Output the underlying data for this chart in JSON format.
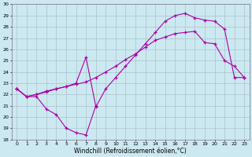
{
  "xlabel": "Windchill (Refroidissement éolien,°C)",
  "bg_color": "#cce8f0",
  "grid_color": "#aac4cc",
  "line_color": "#aa00aa",
  "ylim": [
    18,
    30
  ],
  "xlim": [
    -0.5,
    23.5
  ],
  "line1_x": [
    0,
    1,
    2,
    3,
    4,
    5,
    6,
    7,
    8
  ],
  "line1_y": [
    22.5,
    21.8,
    21.8,
    20.7,
    20.2,
    19.0,
    18.6,
    18.4,
    21.0
  ],
  "line2_x": [
    0,
    1,
    2,
    3,
    4,
    5,
    6,
    7,
    8,
    9,
    10,
    11,
    12,
    13,
    14,
    15,
    16,
    17,
    18,
    19,
    20,
    21,
    22,
    23
  ],
  "line2_y": [
    22.5,
    21.8,
    22.0,
    22.2,
    22.5,
    22.7,
    23.0,
    25.3,
    20.9,
    22.5,
    23.5,
    24.5,
    25.5,
    26.5,
    27.5,
    28.5,
    29.0,
    29.2,
    28.8,
    28.6,
    28.5,
    27.8,
    23.5,
    23.5
  ],
  "line3_x": [
    0,
    1,
    2,
    3,
    4,
    5,
    6,
    7,
    8,
    9,
    10,
    11,
    12,
    13,
    14,
    15,
    16,
    17,
    18,
    19,
    20,
    21,
    22,
    23
  ],
  "line3_y": [
    22.5,
    21.8,
    22.0,
    22.3,
    22.5,
    22.7,
    22.9,
    23.1,
    23.5,
    24.0,
    24.5,
    25.1,
    25.6,
    26.2,
    26.8,
    27.1,
    27.4,
    27.5,
    27.6,
    26.6,
    26.5,
    25.0,
    24.5,
    23.5
  ]
}
